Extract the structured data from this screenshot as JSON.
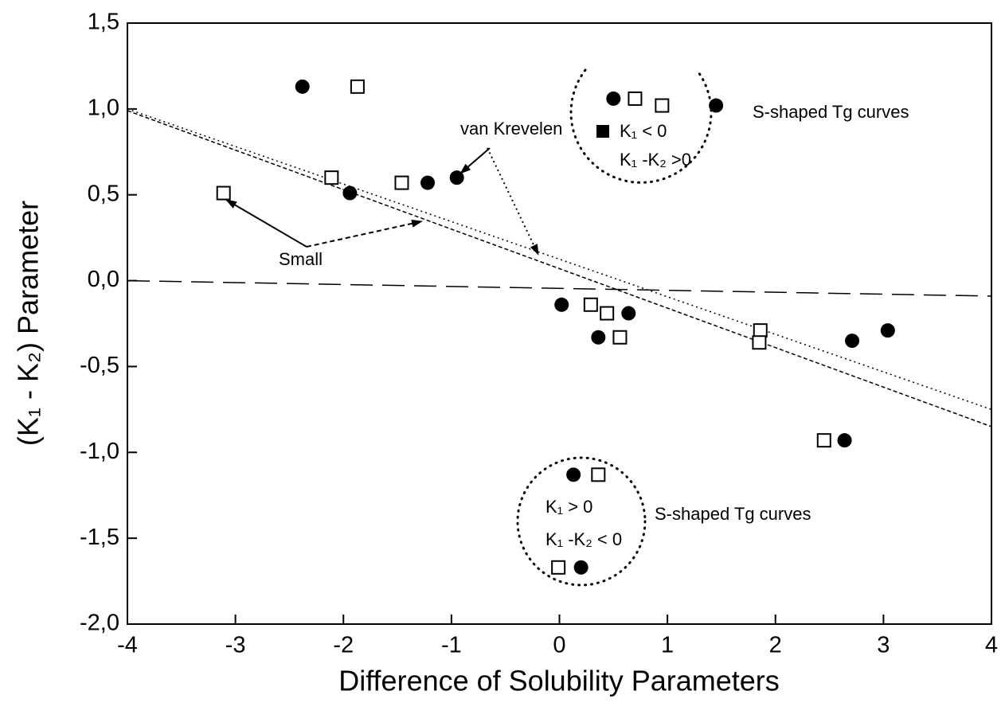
{
  "chart_data": {
    "type": "scatter",
    "xlabel": "Difference of Solubility Parameters",
    "ylabel": "(K₁ - K₂)   Parameter",
    "xlim": [
      -4,
      4
    ],
    "ylim": [
      -2.0,
      1.5
    ],
    "xticks": [
      -4,
      -3,
      -2,
      -1,
      0,
      1,
      2,
      3,
      4
    ],
    "yticks": [
      {
        "value": 1.5,
        "label": "1,5"
      },
      {
        "value": 1.0,
        "label": "1,0"
      },
      {
        "value": 0.5,
        "label": "0,5"
      },
      {
        "value": 0.0,
        "label": "0,0"
      },
      {
        "value": -0.5,
        "label": "-0,5"
      },
      {
        "value": -1.0,
        "label": "-1,0"
      },
      {
        "value": -1.5,
        "label": "-1,5"
      },
      {
        "value": -2.0,
        "label": "-2,0"
      }
    ],
    "series": [
      {
        "marker": "circle",
        "color": "#000000",
        "x": [
          -2.38,
          -1.94,
          -1.22,
          -0.95,
          0.5,
          1.45,
          0.02,
          0.64,
          0.36,
          2.71,
          3.04,
          2.64,
          0.13,
          0.2
        ],
        "values": [
          1.13,
          0.51,
          0.57,
          0.6,
          1.06,
          1.02,
          -0.14,
          -0.19,
          -0.33,
          -0.35,
          -0.29,
          -0.93,
          -1.13,
          -1.67
        ]
      },
      {
        "marker": "square",
        "color": "#000000",
        "x": [
          -3.11,
          -1.87,
          -2.11,
          -1.46,
          0.7,
          0.95,
          0.29,
          0.44,
          0.56,
          1.86,
          1.85,
          2.45,
          0.36,
          -0.01
        ],
        "values": [
          0.51,
          1.13,
          0.6,
          0.57,
          1.06,
          1.02,
          -0.14,
          -0.19,
          -0.33,
          -0.29,
          -0.36,
          -0.93,
          -1.13,
          -1.67
        ]
      }
    ],
    "lines": [
      {
        "style": "dotted",
        "x": [
          -4,
          4
        ],
        "values": [
          1.0,
          -0.75
        ]
      },
      {
        "style": "dashed",
        "x": [
          -4,
          4
        ],
        "values": [
          0.99,
          -0.85
        ]
      },
      {
        "style": "longdash",
        "x": [
          -4,
          4
        ],
        "values": [
          0.0,
          -0.09
        ]
      }
    ],
    "annotations": [
      "van Krevelen",
      "Small",
      "S-shaped Tg curves",
      "K₁ < 0",
      "K₁ -K₂ >0",
      "S-shaped Tg curves",
      "K₁ > 0",
      "K₁ -K₂ < 0"
    ]
  }
}
